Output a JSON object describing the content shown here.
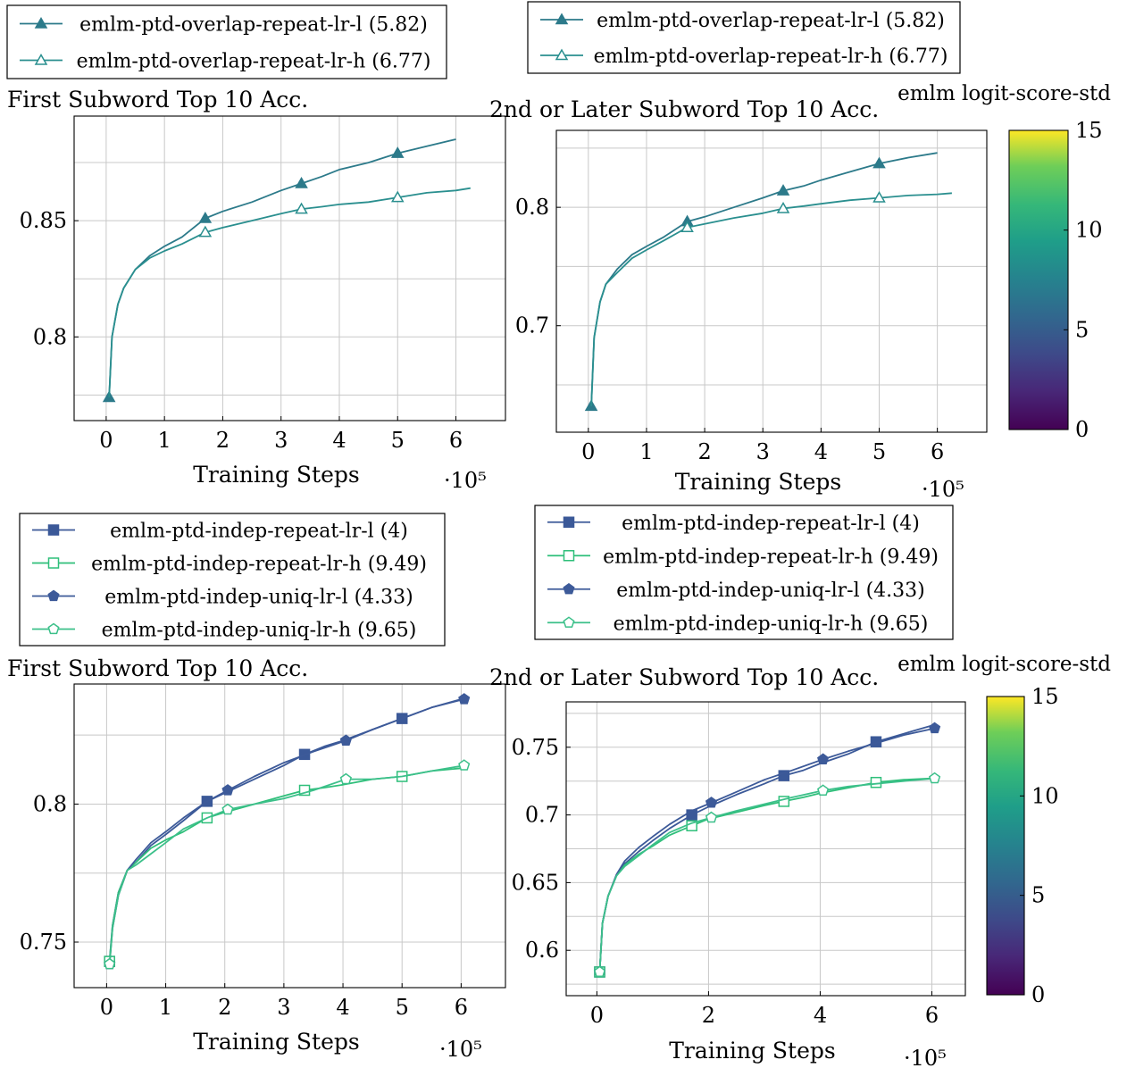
{
  "colors": {
    "overlap_lr_l": "#2c7a8a",
    "overlap_lr_h": "#2a8f8f",
    "indep_repeat_lr_l": "#3b5998",
    "indep_repeat_lr_h": "#2fbf7a",
    "indep_uniq_lr_l": "#3d5a99",
    "indep_uniq_lr_h": "#3cc08a"
  },
  "legends": [
    {
      "entries": [
        {
          "label": "emlm-ptd-overlap-repeat-lr-l (5.82)",
          "color": "#2c7a8a",
          "marker": "triangle-filled"
        },
        {
          "label": "emlm-ptd-overlap-repeat-lr-h (6.77)",
          "color": "#2a8f8f",
          "marker": "triangle-open"
        }
      ]
    },
    {
      "entries": [
        {
          "label": "emlm-ptd-overlap-repeat-lr-l (5.82)",
          "color": "#2c7a8a",
          "marker": "triangle-filled"
        },
        {
          "label": "emlm-ptd-overlap-repeat-lr-h (6.77)",
          "color": "#2a8f8f",
          "marker": "triangle-open"
        }
      ]
    },
    {
      "entries": [
        {
          "label": "emlm-ptd-indep-repeat-lr-l (4)",
          "color": "#3b5998",
          "marker": "square-filled"
        },
        {
          "label": "emlm-ptd-indep-repeat-lr-h (9.49)",
          "color": "#2fbf7a",
          "marker": "square-open"
        },
        {
          "label": "emlm-ptd-indep-uniq-lr-l (4.33)",
          "color": "#3d5a99",
          "marker": "pentagon-filled"
        },
        {
          "label": "emlm-ptd-indep-uniq-lr-h (9.65)",
          "color": "#3cc08a",
          "marker": "pentagon-open"
        }
      ]
    },
    {
      "entries": [
        {
          "label": "emlm-ptd-indep-repeat-lr-l (4)",
          "color": "#3b5998",
          "marker": "square-filled"
        },
        {
          "label": "emlm-ptd-indep-repeat-lr-h (9.49)",
          "color": "#2fbf7a",
          "marker": "square-open"
        },
        {
          "label": "emlm-ptd-indep-uniq-lr-l (4.33)",
          "color": "#3d5a99",
          "marker": "pentagon-filled"
        },
        {
          "label": "emlm-ptd-indep-uniq-lr-h (9.65)",
          "color": "#3cc08a",
          "marker": "pentagon-open"
        }
      ]
    }
  ],
  "colorbars": [
    {
      "label": "emlm logit-score-std",
      "ticks": [
        "0",
        "5",
        "10",
        "15"
      ],
      "range": [
        0,
        15
      ]
    },
    {
      "label": "emlm logit-score-std",
      "ticks": [
        "0",
        "5",
        "10",
        "15"
      ],
      "range": [
        0,
        15
      ]
    }
  ],
  "chart_data": [
    {
      "type": "line",
      "title": "First Subword Top 10 Acc.",
      "xlabel": "Training Steps",
      "x_multiplier": "·10⁵",
      "xlim": [
        -0.55,
        6.85
      ],
      "ylim": [
        0.764,
        0.895
      ],
      "xticks": [
        0,
        1,
        2,
        3,
        4,
        5,
        6
      ],
      "yticks": [
        0.8,
        0.85
      ],
      "ytick_labels": [
        "0.8",
        "0.85"
      ],
      "grid": true,
      "series": [
        {
          "name": "emlm-ptd-overlap-repeat-lr-l (5.82)",
          "color": "#2c7a8a",
          "marker": "triangle-filled",
          "marker_x": [
            0.05,
            1.7,
            3.35,
            5.0
          ],
          "x": [
            0.05,
            0.1,
            0.2,
            0.3,
            0.5,
            0.75,
            1,
            1.3,
            1.7,
            2,
            2.5,
            3,
            3.35,
            3.7,
            4,
            4.5,
            5,
            5.5,
            6
          ],
          "y": [
            0.774,
            0.8,
            0.814,
            0.821,
            0.829,
            0.835,
            0.839,
            0.843,
            0.851,
            0.854,
            0.858,
            0.863,
            0.866,
            0.869,
            0.872,
            0.875,
            0.879,
            0.882,
            0.885
          ]
        },
        {
          "name": "emlm-ptd-overlap-repeat-lr-h (6.77)",
          "color": "#2a8f8f",
          "marker": "triangle-open",
          "marker_x": [
            1.7,
            3.35,
            5.0
          ],
          "x": [
            0.05,
            0.1,
            0.2,
            0.3,
            0.5,
            0.75,
            1,
            1.3,
            1.7,
            2,
            2.5,
            3,
            3.35,
            3.7,
            4,
            4.5,
            5,
            5.5,
            6,
            6.25
          ],
          "y": [
            0.774,
            0.8,
            0.814,
            0.821,
            0.829,
            0.834,
            0.837,
            0.84,
            0.845,
            0.847,
            0.85,
            0.853,
            0.855,
            0.856,
            0.857,
            0.858,
            0.86,
            0.862,
            0.863,
            0.864
          ]
        }
      ]
    },
    {
      "type": "line",
      "title": "2nd or Later Subword Top 10 Acc.",
      "xlabel": "Training Steps",
      "x_multiplier": "·10⁵",
      "xlim": [
        -0.55,
        6.85
      ],
      "ylim": [
        0.61,
        0.865
      ],
      "xticks": [
        0,
        1,
        2,
        3,
        4,
        5,
        6
      ],
      "yticks": [
        0.7,
        0.8
      ],
      "ytick_labels": [
        "0.7",
        "0.8"
      ],
      "grid": true,
      "series": [
        {
          "name": "emlm-ptd-overlap-repeat-lr-l (5.82)",
          "color": "#2c7a8a",
          "marker": "triangle-filled",
          "marker_x": [
            0.05,
            1.7,
            3.35,
            5.0
          ],
          "x": [
            0.05,
            0.1,
            0.2,
            0.3,
            0.5,
            0.75,
            1,
            1.3,
            1.7,
            2,
            2.5,
            3,
            3.35,
            3.7,
            4,
            4.5,
            5,
            5.5,
            6
          ],
          "y": [
            0.632,
            0.69,
            0.72,
            0.735,
            0.748,
            0.76,
            0.767,
            0.775,
            0.788,
            0.792,
            0.8,
            0.808,
            0.814,
            0.818,
            0.823,
            0.83,
            0.837,
            0.842,
            0.846
          ]
        },
        {
          "name": "emlm-ptd-overlap-repeat-lr-h (6.77)",
          "color": "#2a8f8f",
          "marker": "triangle-open",
          "marker_x": [
            1.7,
            3.35,
            5.0
          ],
          "x": [
            0.05,
            0.1,
            0.2,
            0.3,
            0.5,
            0.75,
            1,
            1.3,
            1.7,
            2,
            2.5,
            3,
            3.35,
            3.7,
            4,
            4.5,
            5,
            5.5,
            6,
            6.25
          ],
          "y": [
            0.632,
            0.69,
            0.72,
            0.735,
            0.745,
            0.757,
            0.764,
            0.772,
            0.783,
            0.786,
            0.791,
            0.795,
            0.799,
            0.801,
            0.803,
            0.806,
            0.808,
            0.81,
            0.811,
            0.812
          ]
        }
      ]
    },
    {
      "type": "line",
      "title": "First Subword Top 10 Acc.",
      "xlabel": "Training Steps",
      "x_multiplier": "·10⁵",
      "xlim": [
        -0.55,
        6.75
      ],
      "ylim": [
        0.7335,
        0.8435
      ],
      "xticks": [
        0,
        1,
        2,
        3,
        4,
        5,
        6
      ],
      "yticks": [
        0.75,
        0.8
      ],
      "ytick_labels": [
        "0.75",
        "0.8"
      ],
      "grid": true,
      "series": [
        {
          "name": "emlm-ptd-indep-repeat-lr-l (4)",
          "color": "#3b5998",
          "marker": "square-filled",
          "marker_x": [
            0.05,
            1.7,
            3.35,
            5.0
          ],
          "x": [
            0.05,
            0.1,
            0.2,
            0.35,
            0.5,
            0.75,
            1,
            1.3,
            1.7,
            2,
            2.5,
            3,
            3.35,
            3.7,
            4,
            4.5,
            5,
            5.5,
            6,
            6.05
          ],
          "y": [
            0.743,
            0.756,
            0.768,
            0.776,
            0.779,
            0.785,
            0.789,
            0.794,
            0.801,
            0.804,
            0.809,
            0.814,
            0.818,
            0.821,
            0.823,
            0.827,
            0.831,
            0.835,
            0.838,
            0.838
          ]
        },
        {
          "name": "emlm-ptd-indep-repeat-lr-h (9.49)",
          "color": "#2fbf7a",
          "marker": "square-open",
          "marker_x": [
            0.05,
            1.7,
            3.35,
            5.0
          ],
          "x": [
            0.05,
            0.1,
            0.2,
            0.35,
            0.5,
            0.75,
            1,
            1.3,
            1.7,
            2,
            2.5,
            3,
            3.35,
            3.7,
            4,
            4.5,
            5,
            5.5,
            6,
            6.05
          ],
          "y": [
            0.743,
            0.756,
            0.768,
            0.776,
            0.779,
            0.784,
            0.787,
            0.79,
            0.795,
            0.797,
            0.8,
            0.803,
            0.805,
            0.806,
            0.807,
            0.809,
            0.81,
            0.812,
            0.813,
            0.814
          ]
        },
        {
          "name": "emlm-ptd-indep-uniq-lr-l (4.33)",
          "color": "#3d5a99",
          "marker": "pentagon-filled",
          "marker_x": [
            0.05,
            2.05,
            4.05,
            6.05
          ],
          "x": [
            0.05,
            0.1,
            0.2,
            0.35,
            0.5,
            0.75,
            1,
            1.3,
            1.7,
            2.05,
            2.5,
            3,
            3.5,
            4.05,
            4.5,
            5,
            5.5,
            6.05
          ],
          "y": [
            0.742,
            0.755,
            0.767,
            0.776,
            0.78,
            0.786,
            0.79,
            0.795,
            0.801,
            0.805,
            0.81,
            0.815,
            0.819,
            0.823,
            0.827,
            0.831,
            0.835,
            0.838
          ]
        },
        {
          "name": "emlm-ptd-indep-uniq-lr-h (9.65)",
          "color": "#3cc08a",
          "marker": "pentagon-open",
          "marker_x": [
            0.05,
            2.05,
            4.05,
            6.05
          ],
          "x": [
            0.05,
            0.1,
            0.2,
            0.35,
            0.5,
            0.75,
            1,
            1.3,
            1.7,
            2.05,
            2.5,
            3,
            3.5,
            4.05,
            4.5,
            5,
            5.5,
            6.05
          ],
          "y": [
            0.742,
            0.755,
            0.767,
            0.776,
            0.778,
            0.782,
            0.786,
            0.791,
            0.795,
            0.798,
            0.8,
            0.802,
            0.805,
            0.809,
            0.809,
            0.81,
            0.812,
            0.814
          ]
        }
      ]
    },
    {
      "type": "line",
      "title": "2nd or Later Subword Top 10 Acc.",
      "xlabel": "Training Steps",
      "x_multiplier": "·10⁵",
      "xlim": [
        -0.55,
        6.6
      ],
      "ylim": [
        0.5665,
        0.7835
      ],
      "xticks": [
        0,
        2,
        4,
        6
      ],
      "yticks": [
        0.6,
        0.65,
        0.7,
        0.75
      ],
      "ytick_labels": [
        "0.6",
        "0.65",
        "0.7",
        "0.75"
      ],
      "grid": true,
      "series": [
        {
          "name": "emlm-ptd-indep-repeat-lr-l (4)",
          "color": "#3b5998",
          "marker": "square-filled",
          "marker_x": [
            0.05,
            1.7,
            3.35,
            5.0
          ],
          "x": [
            0.05,
            0.1,
            0.2,
            0.35,
            0.5,
            0.75,
            1,
            1.3,
            1.7,
            2,
            2.5,
            3,
            3.35,
            3.7,
            4,
            4.5,
            5,
            5.5,
            6
          ],
          "y": [
            0.584,
            0.62,
            0.64,
            0.655,
            0.664,
            0.673,
            0.681,
            0.69,
            0.7,
            0.706,
            0.715,
            0.723,
            0.729,
            0.733,
            0.738,
            0.745,
            0.754,
            0.76,
            0.766
          ]
        },
        {
          "name": "emlm-ptd-indep-repeat-lr-h (9.49)",
          "color": "#2fbf7a",
          "marker": "square-open",
          "marker_x": [
            0.05,
            1.7,
            3.35,
            5.0
          ],
          "x": [
            0.05,
            0.1,
            0.2,
            0.35,
            0.5,
            0.75,
            1,
            1.3,
            1.7,
            2,
            2.5,
            3,
            3.35,
            3.7,
            4,
            4.5,
            5,
            5.5,
            6
          ],
          "y": [
            0.584,
            0.62,
            0.64,
            0.655,
            0.663,
            0.671,
            0.677,
            0.685,
            0.692,
            0.697,
            0.702,
            0.707,
            0.71,
            0.713,
            0.716,
            0.72,
            0.724,
            0.726,
            0.727
          ]
        },
        {
          "name": "emlm-ptd-indep-uniq-lr-l (4.33)",
          "color": "#3d5a99",
          "marker": "pentagon-filled",
          "marker_x": [
            0.05,
            2.05,
            4.05,
            6.05
          ],
          "x": [
            0.05,
            0.1,
            0.2,
            0.35,
            0.5,
            0.75,
            1,
            1.3,
            1.7,
            2.05,
            2.5,
            3,
            3.5,
            4.05,
            4.5,
            5,
            5.5,
            6.05
          ],
          "y": [
            0.584,
            0.62,
            0.64,
            0.656,
            0.666,
            0.676,
            0.684,
            0.693,
            0.703,
            0.709,
            0.717,
            0.726,
            0.733,
            0.741,
            0.747,
            0.753,
            0.759,
            0.764
          ]
        },
        {
          "name": "emlm-ptd-indep-uniq-lr-h (9.65)",
          "color": "#3cc08a",
          "marker": "pentagon-open",
          "marker_x": [
            0.05,
            2.05,
            4.05,
            6.05
          ],
          "x": [
            0.05,
            0.1,
            0.2,
            0.35,
            0.5,
            0.75,
            1,
            1.3,
            1.7,
            2.05,
            2.5,
            3,
            3.5,
            4.05,
            4.5,
            5,
            5.5,
            6.05
          ],
          "y": [
            0.584,
            0.62,
            0.64,
            0.655,
            0.662,
            0.67,
            0.678,
            0.687,
            0.694,
            0.698,
            0.703,
            0.708,
            0.713,
            0.718,
            0.721,
            0.723,
            0.725,
            0.727
          ]
        }
      ]
    }
  ]
}
